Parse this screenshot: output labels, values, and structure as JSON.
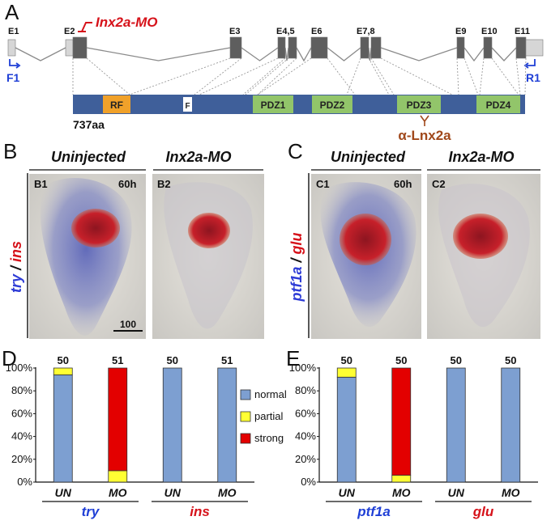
{
  "colors": {
    "exon": "#5e5e5e",
    "utr": "#d6d6d6",
    "protein": "#3f5f9a",
    "rf": "#f0a12a",
    "pdz": "#92c56a",
    "primer": "#1f3fd6",
    "morpholino": "#d6121a",
    "antibody": "#a0481b",
    "normal": "#7d9fd1",
    "partial": "#ffff33",
    "strong": "#e30000",
    "stain_blue": "#4b56b4",
    "stain_red": "#c7202a",
    "tissue_bg": "#dcdcd5"
  },
  "panelA": {
    "letter": "A",
    "exons": [
      "E1",
      "E2",
      "E3",
      "E4,5",
      "E6",
      "E7,8",
      "E9",
      "E10",
      "E11"
    ],
    "morpholino": "Inx2a-MO",
    "primer_forward": "F1",
    "primer_reverse": "R1",
    "domains": [
      "RF",
      "F",
      "PDZ1",
      "PDZ2",
      "PDZ3",
      "PDZ4"
    ],
    "protein_length": "737aa",
    "antibody": "α-Lnx2a"
  },
  "panelB": {
    "letter": "B",
    "col1_head": "Uninjected",
    "col2_head": "Inx2a-MO",
    "sub1": "B1",
    "sub2": "B2",
    "time": "60h",
    "scale": "100",
    "side_label_a": "try",
    "side_slash": " / ",
    "side_label_b": "ins"
  },
  "panelC": {
    "letter": "C",
    "col1_head": "Uninjected",
    "col2_head": "Inx2a-MO",
    "sub1": "C1",
    "sub2": "C2",
    "time": "60h",
    "side_label_a": "ptf1a",
    "side_slash": " / ",
    "side_label_b": "glu"
  },
  "chart_data": [
    {
      "panel": "D",
      "type": "bar",
      "stacked": true,
      "categories": [
        "UN",
        "MO",
        "UN",
        "MO"
      ],
      "groups": [
        {
          "name": "try",
          "categories": [
            "UN",
            "MO"
          ]
        },
        {
          "name": "ins",
          "categories": [
            "UN",
            "MO"
          ]
        }
      ],
      "counts": [
        "50",
        "51",
        "50",
        "51"
      ],
      "series": [
        {
          "name": "normal",
          "values": [
            94,
            0,
            100,
            100
          ]
        },
        {
          "name": "partial",
          "values": [
            6,
            10,
            0,
            0
          ]
        },
        {
          "name": "strong",
          "values": [
            0,
            90,
            0,
            0
          ]
        }
      ],
      "yticks": [
        "0%",
        "20%",
        "40%",
        "60%",
        "80%",
        "100%"
      ],
      "ylim": [
        0,
        100
      ],
      "legend": "right"
    },
    {
      "panel": "E",
      "type": "bar",
      "stacked": true,
      "categories": [
        "UN",
        "MO",
        "UN",
        "MO"
      ],
      "groups": [
        {
          "name": "ptf1a",
          "categories": [
            "UN",
            "MO"
          ]
        },
        {
          "name": "glu",
          "categories": [
            "UN",
            "MO"
          ]
        }
      ],
      "counts": [
        "50",
        "50",
        "50",
        "50"
      ],
      "series": [
        {
          "name": "normal",
          "values": [
            92,
            0,
            100,
            100
          ]
        },
        {
          "name": "partial",
          "values": [
            8,
            6,
            0,
            0
          ]
        },
        {
          "name": "strong",
          "values": [
            0,
            94,
            0,
            0
          ]
        }
      ],
      "yticks": [
        "0%",
        "20%",
        "40%",
        "60%",
        "80%",
        "100%"
      ],
      "ylim": [
        0,
        100
      ]
    }
  ],
  "legend": {
    "items": [
      "normal",
      "partial",
      "strong"
    ]
  }
}
